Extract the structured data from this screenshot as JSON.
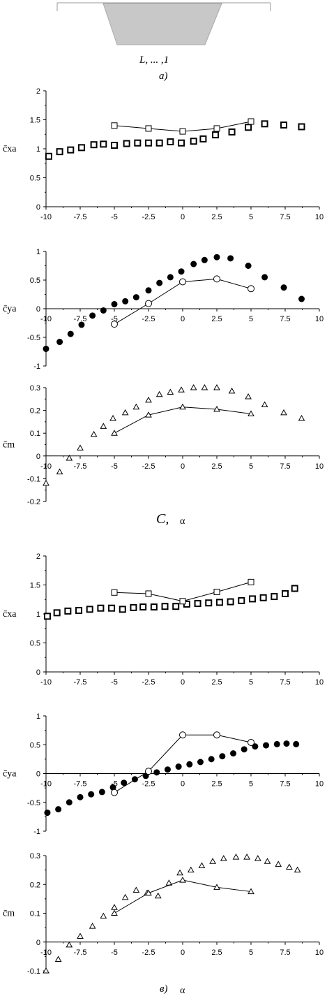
{
  "panel_labels": {
    "a": "a)",
    "b": "C,",
    "c": "в)"
  },
  "sketch_text": "L, ... ,1",
  "axis_symbols": {
    "cxa": "c̄xa",
    "cya": "c̄ya",
    "cm": "c̄m",
    "alpha": "α"
  },
  "colors": {
    "ink": "#000000",
    "shape_fill": "#c8c8c8"
  },
  "chart_data": [
    {
      "type": "scatter",
      "panel": "b",
      "row": 1,
      "ylabel": "c̄xa",
      "xlabel": "",
      "xlim": [
        -10,
        10
      ],
      "ylim": [
        0,
        2
      ],
      "xticks": [
        -10,
        -7.5,
        -5,
        -2.5,
        0,
        2.5,
        5,
        7.5,
        10
      ],
      "xtick_labels": [
        "-10",
        "-7.5",
        "-5",
        "-2.5",
        "0",
        "2.5",
        "5",
        "7.5",
        "10"
      ],
      "yticks": [
        0,
        0.5,
        1,
        1.5,
        2
      ],
      "ytick_labels": [
        "0",
        "0.5",
        "1",
        "1.5",
        "2"
      ],
      "series": [
        {
          "marker": "square-filled",
          "line": false,
          "x": [
            -9.8,
            -9,
            -8.2,
            -7.4,
            -6.5,
            -5.8,
            -5,
            -4.1,
            -3.3,
            -2.5,
            -1.7,
            -0.9,
            -0.1,
            0.8,
            1.5,
            2.4,
            3.6,
            4.8,
            6,
            7.4,
            8.7
          ],
          "y": [
            0.87,
            0.95,
            0.98,
            1.02,
            1.07,
            1.08,
            1.06,
            1.09,
            1.1,
            1.1,
            1.1,
            1.12,
            1.1,
            1.13,
            1.17,
            1.24,
            1.29,
            1.37,
            1.43,
            1.41,
            1.38
          ]
        },
        {
          "marker": "square-open",
          "line": true,
          "x": [
            -5,
            -2.5,
            0,
            2.5,
            5
          ],
          "y": [
            1.4,
            1.35,
            1.3,
            1.35,
            1.47
          ]
        }
      ]
    },
    {
      "type": "scatter",
      "panel": "b",
      "row": 2,
      "ylabel": "c̄ya",
      "xlabel": "",
      "xlim": [
        -10,
        10
      ],
      "ylim": [
        -1,
        1
      ],
      "xticks": [
        -10,
        -7.5,
        -5,
        -2.5,
        0,
        2.5,
        5,
        7.5,
        10
      ],
      "xtick_labels": [
        "-10",
        "-7.5",
        "-5",
        "-2.5",
        "0",
        "2.5",
        "5",
        "7.5",
        "10"
      ],
      "yticks": [
        -1,
        -0.5,
        0,
        0.5,
        1
      ],
      "ytick_labels": [
        "-1",
        "-0.5",
        "0",
        "0.5",
        "1"
      ],
      "series": [
        {
          "marker": "circle-filled",
          "line": false,
          "x": [
            -10,
            -9,
            -8.2,
            -7.4,
            -6.6,
            -5.8,
            -5,
            -4.2,
            -3.4,
            -2.5,
            -1.7,
            -0.9,
            -0.1,
            0.8,
            1.6,
            2.5,
            3.5,
            4.8,
            6,
            7.4,
            8.7
          ],
          "y": [
            -0.7,
            -0.58,
            -0.44,
            -0.28,
            -0.12,
            -0.03,
            0.08,
            0.13,
            0.2,
            0.32,
            0.45,
            0.55,
            0.65,
            0.78,
            0.85,
            0.9,
            0.88,
            0.75,
            0.55,
            0.37,
            0.17
          ]
        },
        {
          "marker": "circle-open",
          "line": true,
          "x": [
            -5,
            -2.5,
            0,
            2.5,
            5
          ],
          "y": [
            -0.27,
            0.09,
            0.47,
            0.52,
            0.35
          ]
        }
      ]
    },
    {
      "type": "scatter",
      "panel": "b",
      "row": 3,
      "ylabel": "c̄m",
      "xlabel": "α",
      "xlim": [
        -10,
        10
      ],
      "ylim": [
        -0.2,
        0.3
      ],
      "xticks": [
        -10,
        -7.5,
        -5,
        -2.5,
        0,
        2.5,
        5,
        7.5,
        10
      ],
      "xtick_labels": [
        "-10",
        "-7.5",
        "-5",
        "-2.5",
        "0",
        "2.5",
        "5",
        "7.5",
        "10"
      ],
      "yticks": [
        -0.2,
        -0.1,
        0,
        0.1,
        0.2,
        0.3
      ],
      "ytick_labels": [
        "-0.2",
        "-0.1",
        "0",
        "0.1",
        "0.2",
        "0.3"
      ],
      "series": [
        {
          "marker": "triangle-open",
          "line": false,
          "x": [
            -10,
            -9,
            -8.3,
            -7.5,
            -6.5,
            -5.8,
            -5.1,
            -4.2,
            -3.4,
            -2.5,
            -1.7,
            -0.9,
            -0.1,
            0.8,
            1.6,
            2.5,
            3.6,
            4.8,
            6,
            7.4,
            8.7
          ],
          "y": [
            -0.12,
            -0.07,
            -0.01,
            0.035,
            0.095,
            0.13,
            0.165,
            0.19,
            0.215,
            0.245,
            0.27,
            0.28,
            0.29,
            0.3,
            0.3,
            0.3,
            0.285,
            0.26,
            0.225,
            0.19,
            0.165
          ]
        },
        {
          "marker": "triangle-open",
          "line": true,
          "x": [
            -5,
            -2.5,
            0,
            2.5,
            5
          ],
          "y": [
            0.1,
            0.18,
            0.215,
            0.205,
            0.185
          ]
        }
      ]
    },
    {
      "type": "scatter",
      "panel": "c",
      "row": 1,
      "ylabel": "c̄xa",
      "xlabel": "",
      "xlim": [
        -10,
        10
      ],
      "ylim": [
        0,
        2
      ],
      "xticks": [
        -10,
        -7.5,
        -5,
        -2.5,
        0,
        2.5,
        5,
        7.5,
        10
      ],
      "xtick_labels": [
        "-10",
        "-7.5",
        "-5",
        "-2.5",
        "0",
        "2.5",
        "5",
        "7.5",
        "10"
      ],
      "yticks": [
        0,
        0.5,
        1,
        1.5,
        2
      ],
      "ytick_labels": [
        "0",
        "0.5",
        "1",
        "1.5",
        "2"
      ],
      "series": [
        {
          "marker": "square-filled",
          "line": false,
          "x": [
            -9.9,
            -9.2,
            -8.4,
            -7.6,
            -6.8,
            -6,
            -5.2,
            -4.4,
            -3.6,
            -2.9,
            -2.1,
            -1.3,
            -0.5,
            0.3,
            1.1,
            1.9,
            2.7,
            3.5,
            4.3,
            5.1,
            5.9,
            6.7,
            7.5,
            8.2
          ],
          "y": [
            0.96,
            1.02,
            1.05,
            1.06,
            1.08,
            1.1,
            1.1,
            1.08,
            1.11,
            1.12,
            1.12,
            1.13,
            1.13,
            1.17,
            1.18,
            1.19,
            1.2,
            1.21,
            1.23,
            1.26,
            1.28,
            1.3,
            1.35,
            1.44
          ]
        },
        {
          "marker": "square-open",
          "line": true,
          "x": [
            -5,
            -2.5,
            0,
            2.5,
            5
          ],
          "y": [
            1.37,
            1.35,
            1.22,
            1.38,
            1.55
          ]
        }
      ]
    },
    {
      "type": "scatter",
      "panel": "c",
      "row": 2,
      "ylabel": "c̄ya",
      "xlabel": "",
      "xlim": [
        -10,
        10
      ],
      "ylim": [
        -1,
        1
      ],
      "xticks": [
        -10,
        -7.5,
        -5,
        -2.5,
        0,
        2.5,
        5,
        7.5,
        10
      ],
      "xtick_labels": [
        "-10",
        "-7.5",
        "-5",
        "-2.5",
        "0",
        "2.5",
        "5",
        "7.5",
        "10"
      ],
      "yticks": [
        -1,
        -0.5,
        0,
        0.5,
        1
      ],
      "ytick_labels": [
        "-1",
        "-0.5",
        "0",
        "0.5",
        "1"
      ],
      "series": [
        {
          "marker": "circle-filled",
          "line": false,
          "x": [
            -9.9,
            -9.1,
            -8.3,
            -7.5,
            -6.7,
            -5.9,
            -5.1,
            -4.3,
            -3.5,
            -2.7,
            -1.9,
            -1.1,
            -0.3,
            0.5,
            1.3,
            2.1,
            2.9,
            3.7,
            4.5,
            5.3,
            6.1,
            6.9,
            7.6,
            8.3
          ],
          "y": [
            -0.68,
            -0.62,
            -0.5,
            -0.41,
            -0.36,
            -0.32,
            -0.24,
            -0.16,
            -0.1,
            -0.04,
            0.02,
            0.07,
            0.12,
            0.16,
            0.2,
            0.25,
            0.3,
            0.35,
            0.42,
            0.47,
            0.49,
            0.51,
            0.52,
            0.51
          ]
        },
        {
          "marker": "circle-open",
          "line": true,
          "x": [
            -5,
            -2.5,
            0,
            2.5,
            5
          ],
          "y": [
            -0.33,
            0.04,
            0.67,
            0.67,
            0.54
          ]
        }
      ]
    },
    {
      "type": "scatter",
      "panel": "c",
      "row": 3,
      "ylabel": "c̄m",
      "xlabel": "α",
      "xlim": [
        -10,
        10
      ],
      "ylim": [
        -0.1,
        0.3
      ],
      "xticks": [
        -10,
        -7.5,
        -5,
        -2.5,
        0,
        2.5,
        5,
        7.5,
        10
      ],
      "xtick_labels": [
        "-10",
        "-7.5",
        "-5",
        "-2.5",
        "0",
        "2.5",
        "5",
        "7.5",
        "10"
      ],
      "yticks": [
        -0.1,
        0,
        0.1,
        0.2,
        0.3
      ],
      "ytick_labels": [
        "-0.1",
        "0",
        "0.1",
        "0.2",
        "0.3"
      ],
      "series": [
        {
          "marker": "triangle-open",
          "line": false,
          "x": [
            -10,
            -9.1,
            -8.3,
            -7.5,
            -6.6,
            -5.8,
            -5,
            -4.2,
            -3.4,
            -2.6,
            -1.8,
            -1,
            -0.2,
            0.6,
            1.4,
            2.2,
            3,
            3.9,
            4.7,
            5.5,
            6.2,
            7,
            7.8,
            8.4
          ],
          "y": [
            -0.1,
            -0.06,
            -0.01,
            0.02,
            0.055,
            0.09,
            0.12,
            0.155,
            0.18,
            0.17,
            0.16,
            0.205,
            0.24,
            0.25,
            0.265,
            0.28,
            0.29,
            0.295,
            0.295,
            0.29,
            0.28,
            0.27,
            0.26,
            0.25
          ]
        },
        {
          "marker": "triangle-open",
          "line": true,
          "x": [
            -5,
            -2.5,
            0,
            2.5,
            5
          ],
          "y": [
            0.1,
            0.17,
            0.215,
            0.19,
            0.175
          ]
        }
      ]
    }
  ]
}
